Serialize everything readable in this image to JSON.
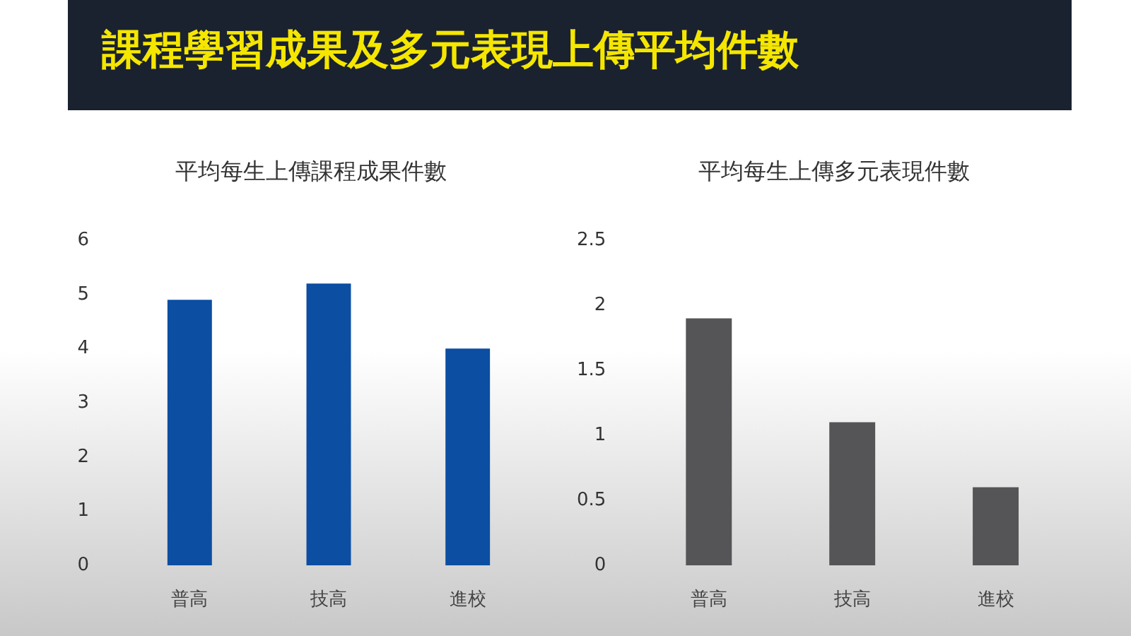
{
  "chart_data": [
    {
      "type": "other",
      "title": "課程學習成果及多元表現上傳平均件數"
    },
    {
      "type": "bar",
      "title": "平均每生上傳課程成果件數",
      "categories": [
        "普高",
        "技高",
        "進校"
      ],
      "values": [
        4.9,
        5.2,
        4.0
      ],
      "color": "#0b4ea2",
      "ylim": [
        0,
        6
      ],
      "yticks": [
        0,
        1,
        2,
        3,
        4,
        5,
        6
      ],
      "grid": false
    },
    {
      "type": "bar",
      "title": "平均每生上傳多元表現件數",
      "categories": [
        "普高",
        "技高",
        "進校"
      ],
      "values": [
        1.9,
        1.1,
        0.6
      ],
      "color": "#555558",
      "ylim": [
        0,
        2.5
      ],
      "yticks": [
        0,
        0.5,
        1,
        1.5,
        2,
        2.5
      ],
      "grid": false
    }
  ]
}
